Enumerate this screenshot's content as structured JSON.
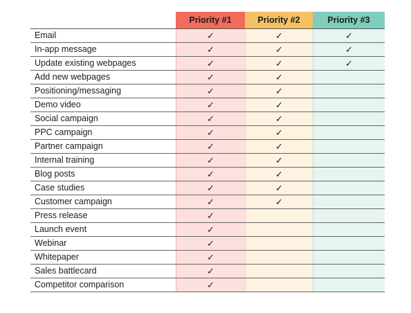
{
  "headers": [
    "Priority #1",
    "Priority #2",
    "Priority #3"
  ],
  "check_glyph": "✓",
  "rows": [
    {
      "label": "Email",
      "p1": true,
      "p2": true,
      "p3": true
    },
    {
      "label": "In-app message",
      "p1": true,
      "p2": true,
      "p3": true
    },
    {
      "label": "Update existing webpages",
      "p1": true,
      "p2": true,
      "p3": true
    },
    {
      "label": "Add new webpages",
      "p1": true,
      "p2": true,
      "p3": false
    },
    {
      "label": "Positioning/messaging",
      "p1": true,
      "p2": true,
      "p3": false
    },
    {
      "label": "Demo video",
      "p1": true,
      "p2": true,
      "p3": false
    },
    {
      "label": "Social campaign",
      "p1": true,
      "p2": true,
      "p3": false
    },
    {
      "label": "PPC campaign",
      "p1": true,
      "p2": true,
      "p3": false
    },
    {
      "label": "Partner campaign",
      "p1": true,
      "p2": true,
      "p3": false
    },
    {
      "label": "Internal training",
      "p1": true,
      "p2": true,
      "p3": false
    },
    {
      "label": "Blog posts",
      "p1": true,
      "p2": true,
      "p3": false
    },
    {
      "label": "Case studies",
      "p1": true,
      "p2": true,
      "p3": false
    },
    {
      "label": "Customer campaign",
      "p1": true,
      "p2": true,
      "p3": false
    },
    {
      "label": "Press release",
      "p1": true,
      "p2": false,
      "p3": false
    },
    {
      "label": "Launch event",
      "p1": true,
      "p2": false,
      "p3": false
    },
    {
      "label": "Webinar",
      "p1": true,
      "p2": false,
      "p3": false
    },
    {
      "label": "Whitepaper",
      "p1": true,
      "p2": false,
      "p3": false
    },
    {
      "label": "Sales battlecard",
      "p1": true,
      "p2": false,
      "p3": false
    },
    {
      "label": "Competitor comparison",
      "p1": true,
      "p2": false,
      "p3": false
    }
  ],
  "colors": {
    "p1_header": "#f26b5b",
    "p2_header": "#f6c063",
    "p3_header": "#7fcdbc",
    "p1_cell": "#fde0de",
    "p2_cell": "#fef3e1",
    "p3_cell": "#e6f5f1"
  }
}
